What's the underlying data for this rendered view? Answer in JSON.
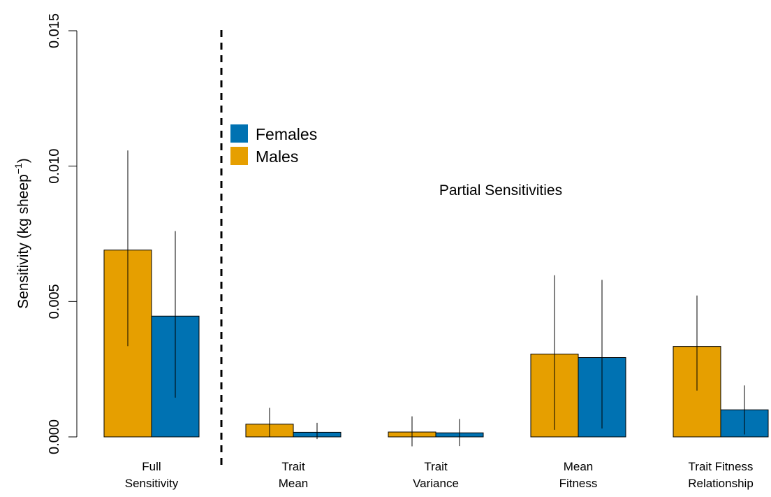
{
  "chart_data": {
    "type": "bar",
    "ylabel_main": "Sensitivity (kg sheep",
    "ylabel_sup": "−1",
    "ylabel_close": ")",
    "ylim": [
      0,
      0.015
    ],
    "yticks": [
      "0.000",
      "0.005",
      "0.010",
      "0.015"
    ],
    "ytick_values": [
      0,
      0.005,
      0.01,
      0.015
    ],
    "categories": [
      {
        "line1": "Full",
        "line2": "Sensitivity"
      },
      {
        "line1": "Trait",
        "line2": "Mean"
      },
      {
        "line1": "Trait",
        "line2": "Variance"
      },
      {
        "line1": "Mean",
        "line2": "Fitness"
      },
      {
        "line1": "Trait Fitness",
        "line2": "Relationship"
      }
    ],
    "series": [
      {
        "name": "Males",
        "color": "#E69F00",
        "values": [
          0.0069,
          0.00047,
          0.00018,
          0.00306,
          0.00334
        ],
        "err_low": [
          0.00335,
          1e-05,
          -0.00035,
          0.00026,
          0.00171
        ],
        "err_high": [
          0.01058,
          0.00107,
          0.00076,
          0.00597,
          0.00522
        ]
      },
      {
        "name": "Females",
        "color": "#0072B2",
        "values": [
          0.00446,
          0.00017,
          0.00015,
          0.00293,
          0.001
        ],
        "err_low": [
          0.00145,
          -8e-05,
          -0.00034,
          0.00031,
          9e-05
        ],
        "err_high": [
          0.0076,
          0.00052,
          0.00066,
          0.0058,
          0.0019
        ]
      }
    ],
    "legend": [
      {
        "name": "Females",
        "color": "#0072B2"
      },
      {
        "name": "Males",
        "color": "#E69F00"
      }
    ],
    "annotation": "Partial Sensitivities",
    "separator": "dashed vertical line after first group"
  }
}
